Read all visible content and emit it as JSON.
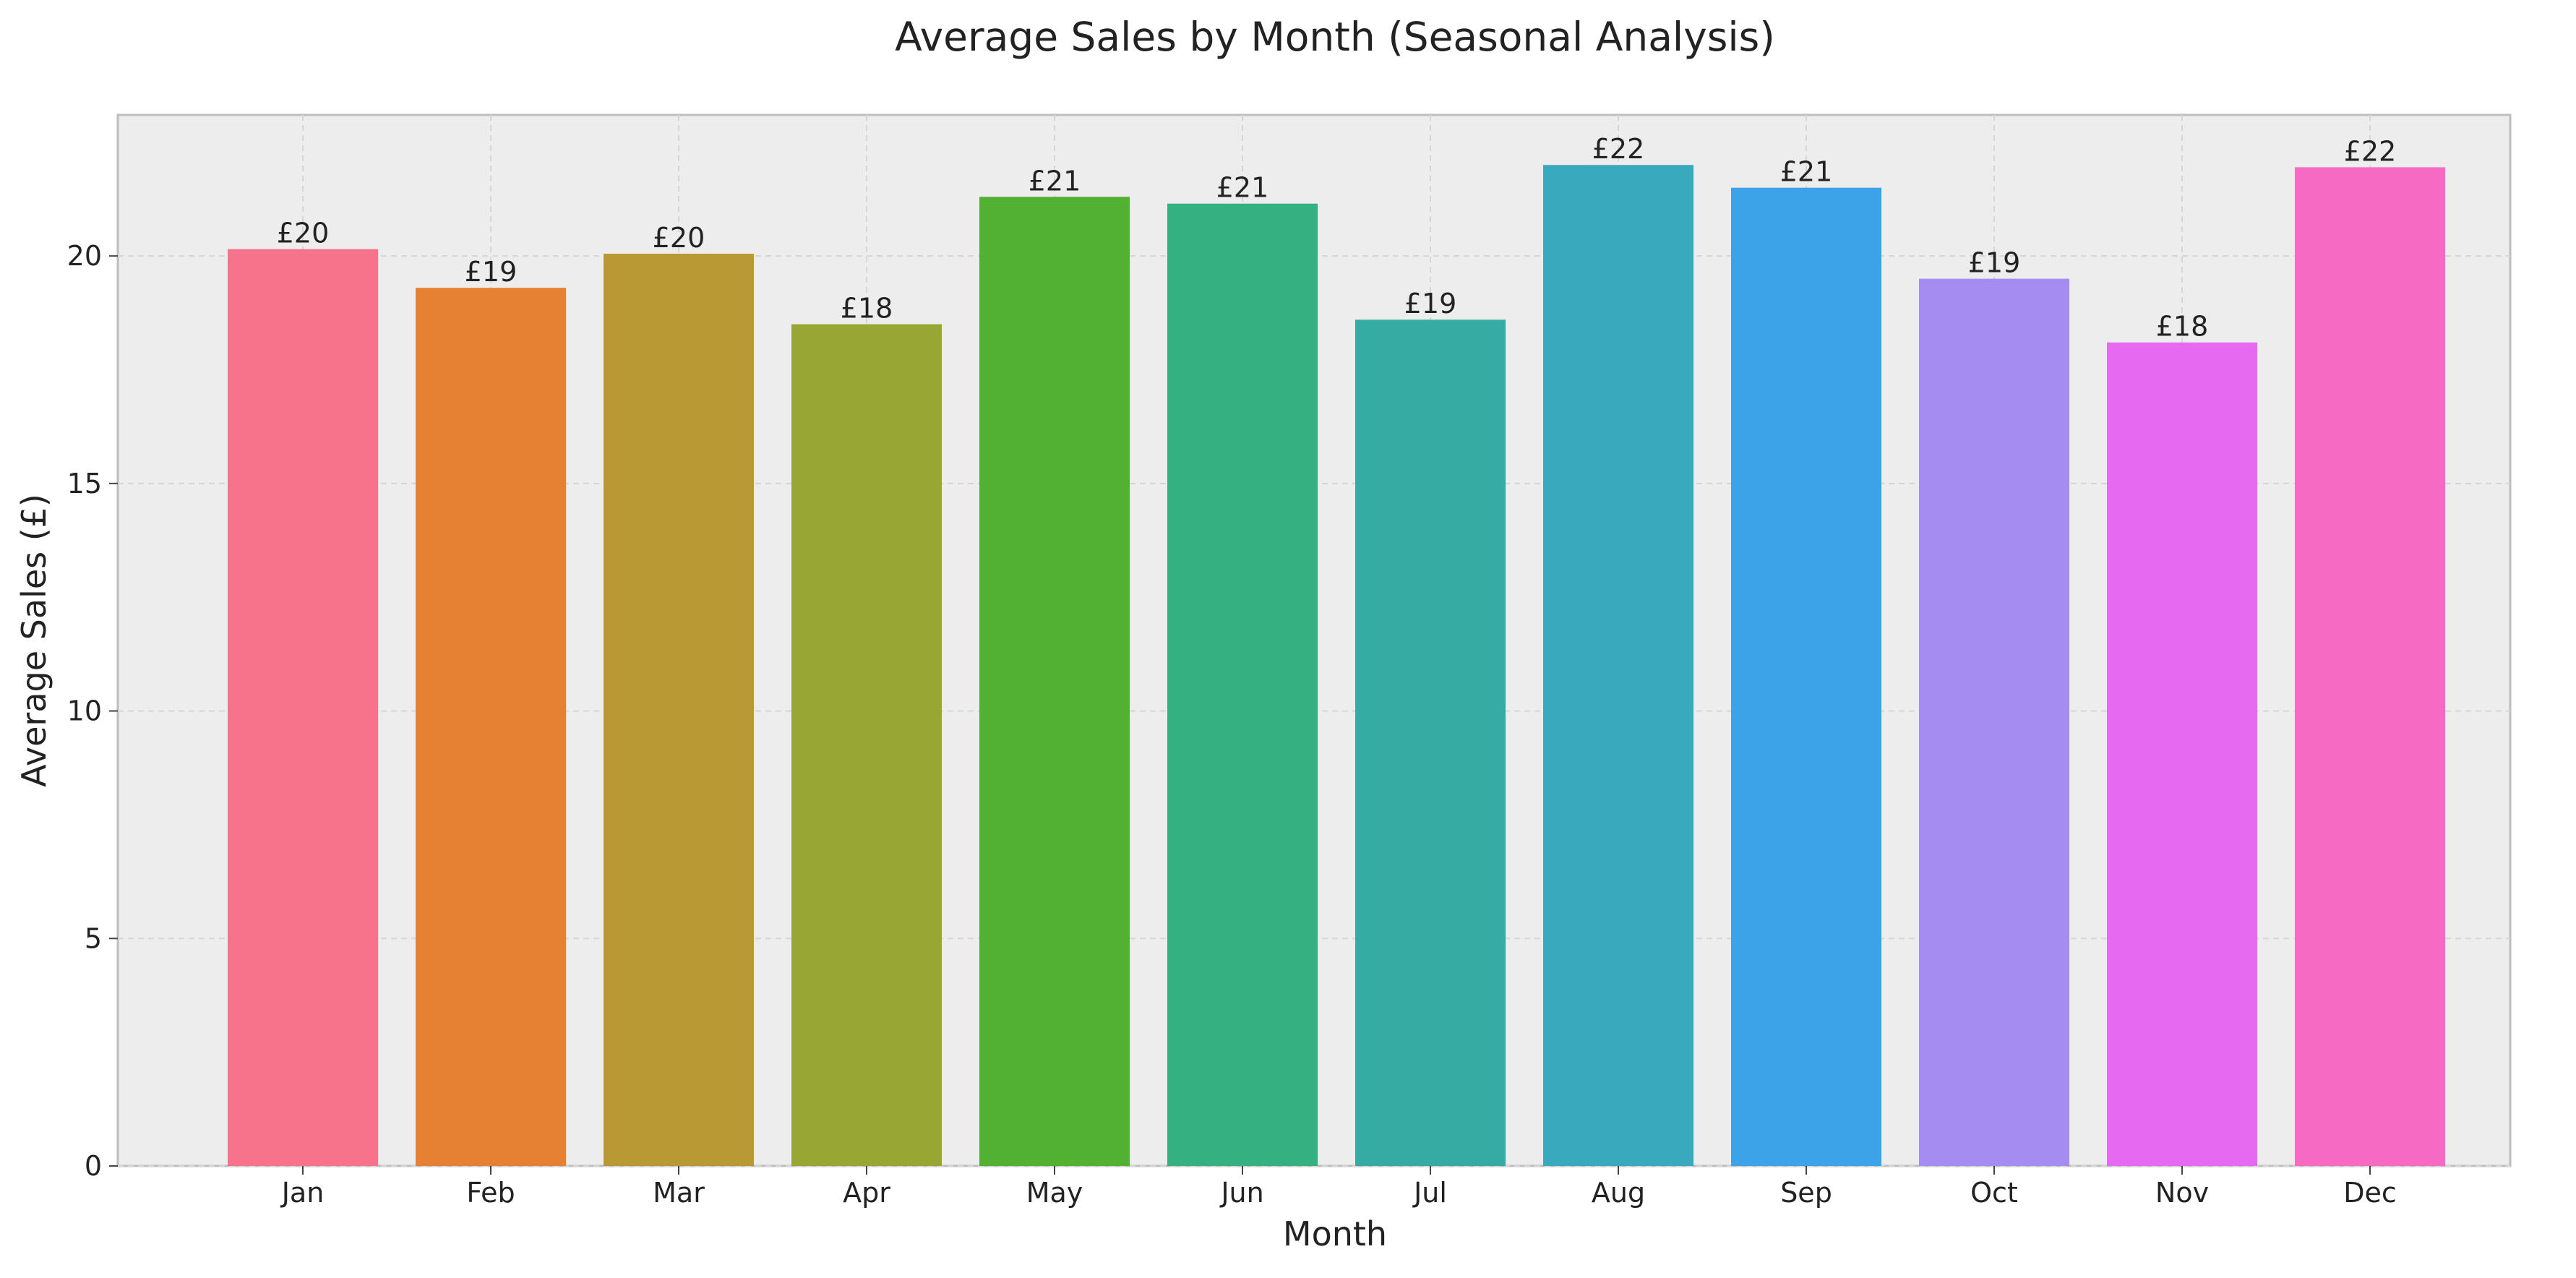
{
  "chart_data": {
    "type": "bar",
    "title": "Average Sales by Month (Seasonal Analysis)",
    "xlabel": "Month",
    "ylabel": "Average Sales (£)",
    "categories": [
      "Jan",
      "Feb",
      "Mar",
      "Apr",
      "May",
      "Jun",
      "Jul",
      "Aug",
      "Sep",
      "Oct",
      "Nov",
      "Dec"
    ],
    "values": [
      20.15,
      19.3,
      20.05,
      18.5,
      21.3,
      21.15,
      18.6,
      22.0,
      21.5,
      19.5,
      18.1,
      21.95
    ],
    "bar_labels": [
      "£20",
      "£19",
      "£20",
      "£18",
      "£21",
      "£21",
      "£19",
      "£22",
      "£21",
      "£19",
      "£18",
      "£22"
    ],
    "colors": [
      "#f7738b",
      "#e68033",
      "#b89933",
      "#98a633",
      "#52b132",
      "#35b080",
      "#36aba3",
      "#39a9be",
      "#3ca3e8",
      "#a48cf1",
      "#e669f2",
      "#f66ac3"
    ],
    "ylim": [
      0,
      23.1
    ],
    "yticks": [
      0,
      5,
      10,
      15,
      20
    ],
    "grid": true,
    "legend": "none"
  }
}
